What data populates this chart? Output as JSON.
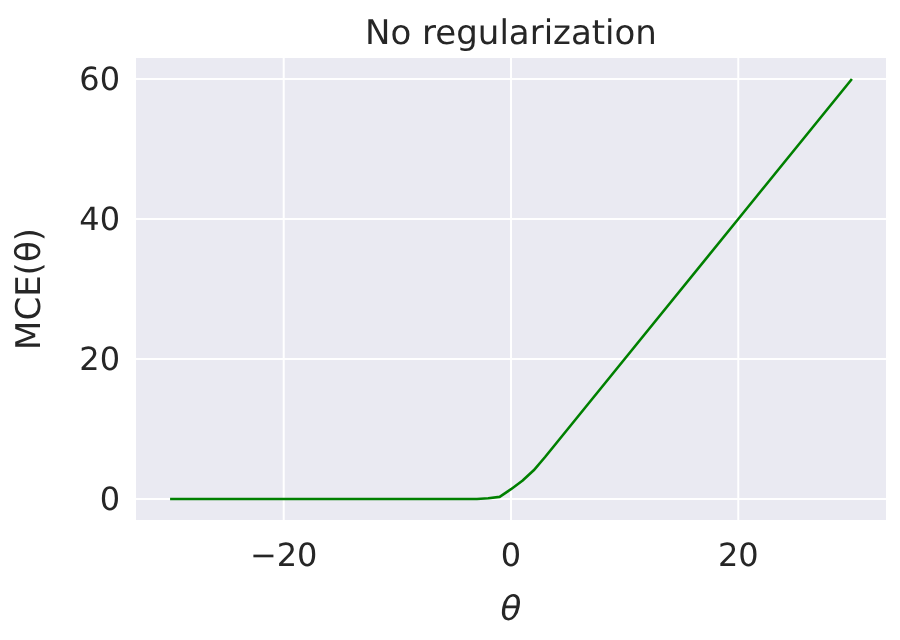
{
  "chart_data": {
    "type": "line",
    "title": "No regularization",
    "xlabel": "θ",
    "ylabel": "MCE(θ)",
    "x": [
      -30,
      -20,
      -10,
      -5,
      -4,
      -3,
      -2,
      -1,
      0,
      1,
      2,
      3,
      4,
      6,
      10,
      20,
      30
    ],
    "series": [
      {
        "color": "#008000",
        "values": [
          0,
          0,
          0,
          0,
          0,
          0,
          0.1,
          0.3,
          1.4,
          2.6,
          4.1,
          6,
          8,
          12,
          20,
          40,
          60
        ]
      }
    ],
    "xlim": [
      -33,
      33
    ],
    "xticks": [
      -20,
      0,
      20
    ],
    "ylim": [
      -3,
      63
    ],
    "yticks": [
      0,
      20,
      40,
      60
    ],
    "grid": true,
    "marker": "none",
    "line_style": "solid"
  }
}
